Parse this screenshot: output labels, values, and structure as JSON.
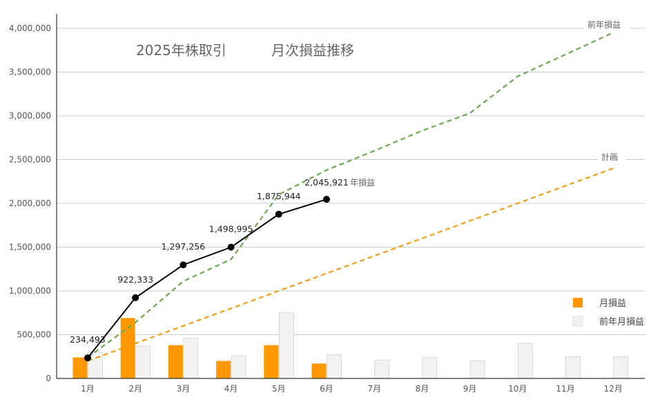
{
  "chart_data": {
    "type": "bar",
    "title": "2025年株取引",
    "subtitle": "月次損益推移",
    "categories": [
      "1月",
      "2月",
      "3月",
      "4月",
      "5月",
      "6月",
      "7月",
      "8月",
      "9月",
      "10月",
      "11月",
      "12月"
    ],
    "ylim": [
      0,
      4000000
    ],
    "yticks": [
      0,
      500000,
      1000000,
      1500000,
      2000000,
      2500000,
      3000000,
      3500000,
      4000000
    ],
    "ytick_labels": [
      "0",
      "500,000",
      "1,000,000",
      "1,500,000",
      "2,000,000",
      "2,500,000",
      "3,000,000",
      "3,500,000",
      "4,000,000"
    ],
    "grid": true,
    "legend_position": "bottom-right",
    "series": [
      {
        "name": "月損益",
        "kind": "bar",
        "color": "#FF9800",
        "values": [
          240000,
          690000,
          380000,
          200000,
          380000,
          170000,
          null,
          null,
          null,
          null,
          null,
          null
        ]
      },
      {
        "name": "前年月損益",
        "kind": "bar",
        "color": "#F2F2F2",
        "values": [
          300000,
          370000,
          460000,
          260000,
          750000,
          270000,
          210000,
          240000,
          200000,
          400000,
          250000,
          250000
        ]
      },
      {
        "name": "年損益",
        "kind": "line",
        "color": "#000000",
        "values": [
          234493,
          922333,
          1297256,
          1498995,
          1875944,
          2045921,
          null,
          null,
          null,
          null,
          null,
          null
        ],
        "labels": [
          "234,493",
          "922,333",
          "1,297,256",
          "1,498,995",
          "1,875,944",
          "2,045,921"
        ]
      },
      {
        "name": "前年損益",
        "kind": "line-dashed",
        "color": "#6AA84F",
        "values": [
          240000,
          640000,
          1110000,
          1360000,
          2100000,
          2380000,
          2600000,
          2830000,
          3030000,
          3450000,
          3700000,
          3950000
        ]
      },
      {
        "name": "計画",
        "kind": "line-dashed",
        "color": "#F39C12",
        "values": [
          200000,
          400000,
          600000,
          800000,
          1000000,
          1200000,
          1400000,
          1600000,
          1800000,
          2000000,
          2200000,
          2400000
        ]
      }
    ]
  }
}
